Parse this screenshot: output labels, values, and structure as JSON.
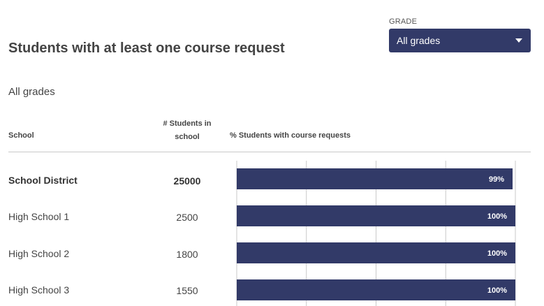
{
  "page_title": "Students with at least one course request",
  "filter": {
    "label": "GRADE",
    "value": "All grades"
  },
  "subtitle": "All grades",
  "columns": {
    "school": "School",
    "count_line1": "# Students in",
    "count_line2": "school",
    "percent": "% Students with course requests"
  },
  "colors": {
    "bar": "#323a68",
    "select": "#323a68",
    "grid": "#c9c9c9",
    "bar_label": "#ffffff"
  },
  "chart_data": {
    "type": "bar",
    "orientation": "horizontal",
    "categories": [
      "School District",
      "High School 1",
      "High School 2",
      "High School 3"
    ],
    "series": [
      {
        "values": [
          99,
          100,
          100,
          100
        ]
      }
    ],
    "data_labels": [
      "99%",
      "100%",
      "100%",
      "100%"
    ],
    "student_counts": [
      "25000",
      "2500",
      "1800",
      "1550"
    ],
    "xlim": [
      0,
      100
    ],
    "grid": true,
    "gridlines_at": [
      0,
      25,
      50,
      75,
      100
    ]
  }
}
